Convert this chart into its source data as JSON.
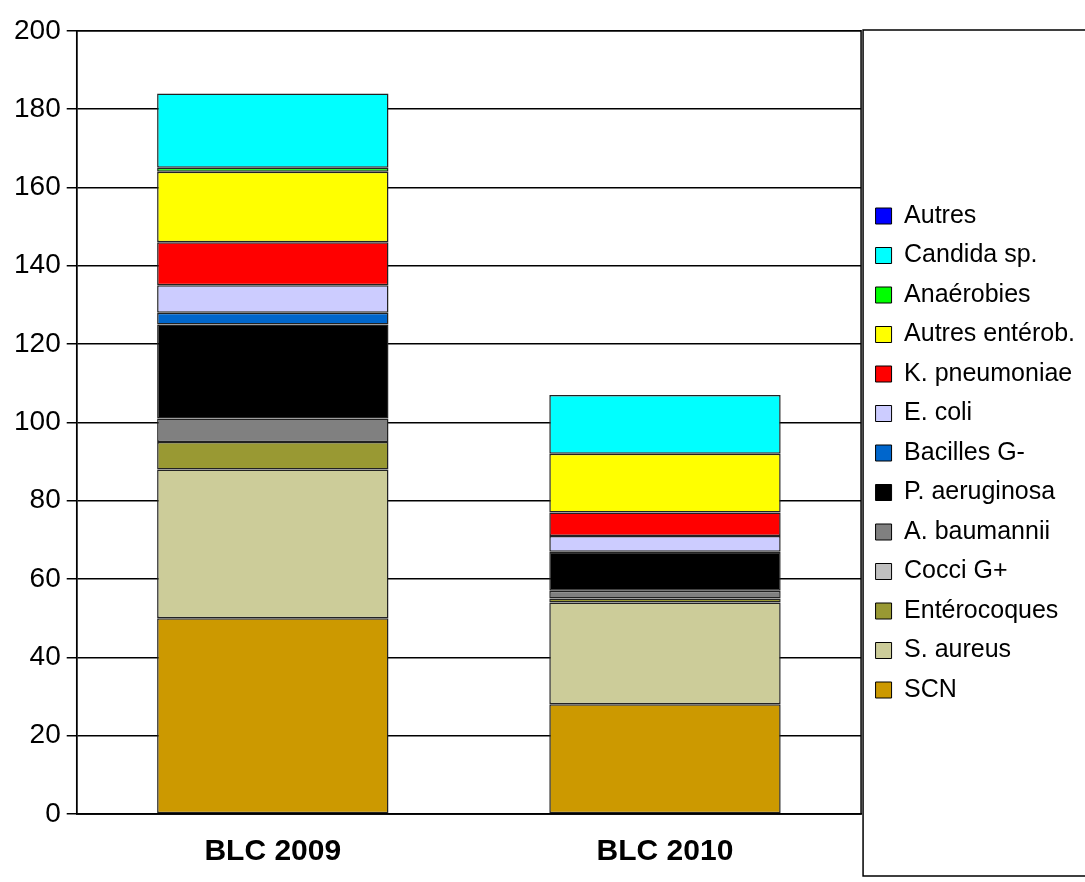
{
  "chart_data": {
    "type": "bar",
    "stacked": true,
    "categories": [
      "BLC 2009",
      "BLC 2010"
    ],
    "series": [
      {
        "name": "SCN",
        "color": "#cc9900",
        "values": [
          50,
          28
        ]
      },
      {
        "name": "S. aureus",
        "color": "#cccc99",
        "values": [
          38,
          26
        ]
      },
      {
        "name": "Entérocoques",
        "color": "#999933",
        "values": [
          7,
          1
        ]
      },
      {
        "name": "Cocci G+",
        "color": "#c0c0c0",
        "values": [
          0,
          0
        ]
      },
      {
        "name": "A. baumannii",
        "color": "#808080",
        "values": [
          6,
          2
        ]
      },
      {
        "name": "P. aeruginosa",
        "color": "#000000",
        "values": [
          24,
          10
        ]
      },
      {
        "name": "Bacilles G-",
        "color": "#0066cc",
        "values": [
          3,
          0
        ]
      },
      {
        "name": "E. coli",
        "color": "#ccccff",
        "values": [
          7,
          4
        ]
      },
      {
        "name": "K. pneumoniae",
        "color": "#ff0000",
        "values": [
          11,
          6
        ]
      },
      {
        "name": "Autres entérob.",
        "color": "#ffff00",
        "values": [
          18,
          15
        ]
      },
      {
        "name": "Anaérobies",
        "color": "#00ff00",
        "values": [
          1,
          0
        ]
      },
      {
        "name": "Candida sp.",
        "color": "#00ffff",
        "values": [
          19,
          15
        ]
      },
      {
        "name": "Autres",
        "color": "#0000ff",
        "values": [
          0,
          0
        ]
      }
    ],
    "ylim": [
      0,
      200
    ],
    "yticks": [
      0,
      20,
      40,
      60,
      80,
      100,
      120,
      140,
      160,
      180,
      200
    ],
    "grid": "y",
    "legend": "right"
  }
}
